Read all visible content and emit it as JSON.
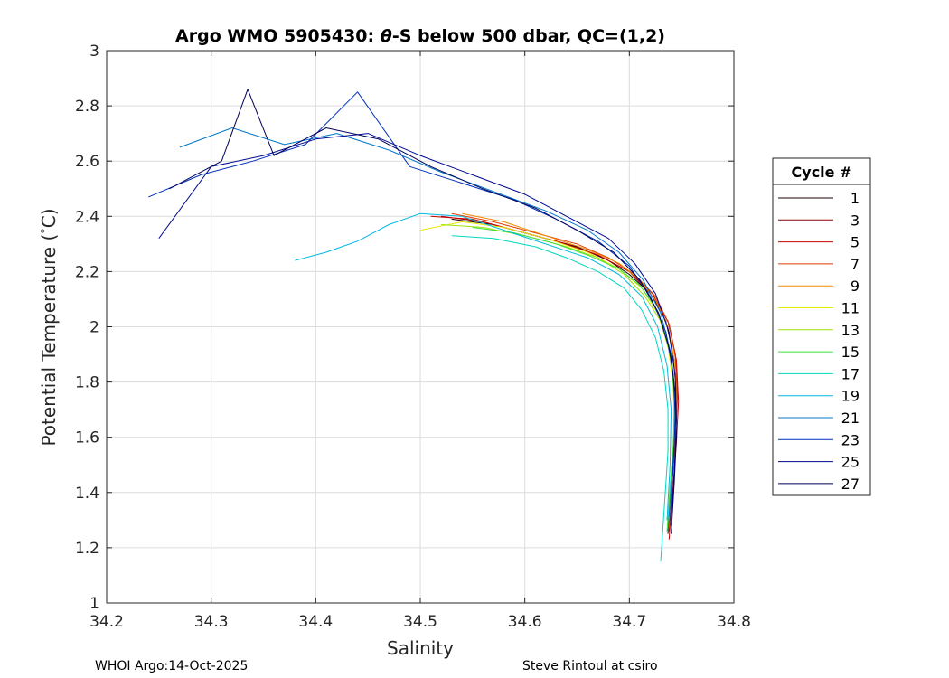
{
  "chart_data": {
    "type": "line",
    "title_prefix": "Argo WMO 5905430: ",
    "title_theta": "θ",
    "title_suffix": "-S below 500 dbar,  QC=(1,2)",
    "xlabel": "Salinity",
    "ylabel_main": "Potential Temperature (",
    "ylabel_deg": "°",
    "ylabel_unit": "C)",
    "xlim": [
      34.2,
      34.8
    ],
    "ylim": [
      1,
      3
    ],
    "xticks": [
      "34.2",
      "34.3",
      "34.4",
      "34.5",
      "34.6",
      "34.7",
      "34.8"
    ],
    "yticks": [
      "1",
      "1.2",
      "1.4",
      "1.6",
      "1.8",
      "2",
      "2.2",
      "2.4",
      "2.6",
      "2.8",
      "3"
    ],
    "grid": true,
    "legend_title": "Cycle #",
    "legend_position": "right-outside",
    "legend": [
      {
        "label": "1",
        "color": "#1a0000"
      },
      {
        "label": "3",
        "color": "#8b0000"
      },
      {
        "label": "5",
        "color": "#cc0000"
      },
      {
        "label": "7",
        "color": "#e03c00"
      },
      {
        "label": "9",
        "color": "#f08a00"
      },
      {
        "label": "11",
        "color": "#e8e800"
      },
      {
        "label": "13",
        "color": "#9ae600"
      },
      {
        "label": "15",
        "color": "#3ee03e"
      },
      {
        "label": "17",
        "color": "#00d8c0"
      },
      {
        "label": "19",
        "color": "#00b8e0"
      },
      {
        "label": "21",
        "color": "#0078c8"
      },
      {
        "label": "23",
        "color": "#0030b8"
      },
      {
        "label": "25",
        "color": "#000a90"
      },
      {
        "label": "27",
        "color": "#00005a"
      }
    ],
    "series": [
      {
        "name": "1",
        "color": "#1a0000",
        "x": [
          34.53,
          34.57,
          34.61,
          34.65,
          34.68,
          34.7,
          34.72,
          34.735,
          34.742,
          34.745,
          34.743,
          34.74,
          34.737
        ],
        "y": [
          2.39,
          2.37,
          2.33,
          2.29,
          2.24,
          2.19,
          2.12,
          2.02,
          1.9,
          1.75,
          1.6,
          1.45,
          1.25
        ]
      },
      {
        "name": "3",
        "color": "#8b0000",
        "x": [
          34.52,
          34.56,
          34.6,
          34.64,
          34.67,
          34.7,
          34.72,
          34.737,
          34.744,
          34.746,
          34.744,
          34.741,
          34.738
        ],
        "y": [
          2.4,
          2.38,
          2.34,
          2.3,
          2.26,
          2.2,
          2.12,
          2.02,
          1.9,
          1.75,
          1.6,
          1.45,
          1.26
        ]
      },
      {
        "name": "5",
        "color": "#cc0000",
        "x": [
          34.51,
          34.55,
          34.59,
          34.63,
          34.67,
          34.7,
          34.722,
          34.738,
          34.745,
          34.747,
          34.745,
          34.742,
          34.738
        ],
        "y": [
          2.4,
          2.39,
          2.35,
          2.31,
          2.26,
          2.2,
          2.12,
          2.01,
          1.88,
          1.73,
          1.58,
          1.43,
          1.23
        ]
      },
      {
        "name": "7",
        "color": "#e03c00",
        "x": [
          34.53,
          34.57,
          34.61,
          34.65,
          34.68,
          34.705,
          34.725,
          34.738,
          34.744,
          34.746,
          34.744,
          34.741,
          34.738
        ],
        "y": [
          2.41,
          2.38,
          2.34,
          2.3,
          2.25,
          2.19,
          2.11,
          2.01,
          1.89,
          1.74,
          1.59,
          1.44,
          1.27
        ]
      },
      {
        "name": "9",
        "color": "#f08a00",
        "x": [
          34.54,
          34.58,
          34.62,
          34.66,
          34.69,
          34.71,
          34.726,
          34.737,
          34.743,
          34.745,
          34.743,
          34.74,
          34.737
        ],
        "y": [
          2.41,
          2.38,
          2.33,
          2.28,
          2.23,
          2.17,
          2.09,
          2.0,
          1.88,
          1.74,
          1.59,
          1.44,
          1.28
        ]
      },
      {
        "name": "11",
        "color": "#e8e800",
        "x": [
          34.5,
          34.54,
          34.58,
          34.62,
          34.66,
          34.69,
          34.712,
          34.727,
          34.737,
          34.742,
          34.743,
          34.741,
          34.738
        ],
        "y": [
          2.35,
          2.38,
          2.36,
          2.32,
          2.27,
          2.21,
          2.14,
          2.05,
          1.93,
          1.79,
          1.64,
          1.48,
          1.3
        ]
      },
      {
        "name": "13",
        "color": "#9ae600",
        "x": [
          34.52,
          34.56,
          34.6,
          34.64,
          34.67,
          34.695,
          34.715,
          34.73,
          34.739,
          34.743,
          34.743,
          34.741,
          34.737
        ],
        "y": [
          2.37,
          2.36,
          2.33,
          2.29,
          2.25,
          2.19,
          2.11,
          2.02,
          1.9,
          1.76,
          1.61,
          1.45,
          1.28
        ]
      },
      {
        "name": "15",
        "color": "#3ee03e",
        "x": [
          34.55,
          34.59,
          34.63,
          34.66,
          34.69,
          34.71,
          34.725,
          34.735,
          34.741,
          34.743,
          34.742,
          34.739,
          34.736
        ],
        "y": [
          2.36,
          2.34,
          2.3,
          2.26,
          2.21,
          2.15,
          2.07,
          1.98,
          1.86,
          1.72,
          1.57,
          1.42,
          1.26
        ]
      },
      {
        "name": "17",
        "color": "#00d8c0",
        "x": [
          34.53,
          34.57,
          34.61,
          34.64,
          34.67,
          34.695,
          34.712,
          34.725,
          34.733,
          34.737,
          34.737,
          34.734,
          34.73
        ],
        "y": [
          2.33,
          2.32,
          2.29,
          2.25,
          2.2,
          2.14,
          2.06,
          1.96,
          1.84,
          1.7,
          1.55,
          1.38,
          1.15
        ]
      },
      {
        "name": "19",
        "color": "#00b8e0",
        "x": [
          34.38,
          34.41,
          34.44,
          34.47,
          34.5,
          34.54,
          34.58,
          34.62,
          34.66,
          34.69,
          34.712,
          34.727,
          34.736,
          34.74,
          34.739,
          34.736
        ],
        "y": [
          2.24,
          2.27,
          2.31,
          2.37,
          2.41,
          2.4,
          2.35,
          2.3,
          2.25,
          2.19,
          2.11,
          2.0,
          1.86,
          1.7,
          1.5,
          1.3
        ]
      },
      {
        "name": "21",
        "color": "#0078c8",
        "x": [
          34.27,
          34.32,
          34.37,
          34.42,
          34.47,
          34.52,
          34.57,
          34.62,
          34.66,
          34.69,
          34.713,
          34.73,
          34.74,
          34.744,
          34.743,
          34.74,
          34.737
        ],
        "y": [
          2.65,
          2.72,
          2.66,
          2.7,
          2.64,
          2.56,
          2.49,
          2.42,
          2.35,
          2.27,
          2.17,
          2.05,
          1.9,
          1.74,
          1.58,
          1.42,
          1.26
        ]
      },
      {
        "name": "23",
        "color": "#0030b8",
        "x": [
          34.24,
          34.29,
          34.34,
          34.39,
          34.44,
          34.49,
          34.54,
          34.59,
          34.63,
          34.67,
          34.7,
          34.72,
          34.735,
          34.742,
          34.744,
          34.742,
          34.739
        ],
        "y": [
          2.47,
          2.55,
          2.6,
          2.66,
          2.85,
          2.58,
          2.52,
          2.46,
          2.39,
          2.31,
          2.22,
          2.11,
          1.98,
          1.83,
          1.67,
          1.5,
          1.3
        ]
      },
      {
        "name": "25",
        "color": "#000a90",
        "x": [
          34.25,
          34.3,
          34.35,
          34.4,
          34.45,
          34.5,
          34.55,
          34.6,
          34.64,
          34.68,
          34.705,
          34.725,
          34.738,
          34.744,
          34.745,
          34.743,
          34.74
        ],
        "y": [
          2.32,
          2.58,
          2.62,
          2.68,
          2.7,
          2.62,
          2.55,
          2.48,
          2.4,
          2.32,
          2.23,
          2.12,
          1.98,
          1.82,
          1.66,
          1.48,
          1.28
        ]
      },
      {
        "name": "27",
        "color": "#00005a",
        "x": [
          34.26,
          34.31,
          34.335,
          34.36,
          34.41,
          34.46,
          34.51,
          34.56,
          34.61,
          34.65,
          34.685,
          34.71,
          34.728,
          34.739,
          34.744,
          34.745,
          34.743,
          34.74
        ],
        "y": [
          2.5,
          2.6,
          2.86,
          2.62,
          2.72,
          2.68,
          2.58,
          2.5,
          2.43,
          2.35,
          2.27,
          2.17,
          2.05,
          1.91,
          1.76,
          1.6,
          1.44,
          1.25
        ]
      }
    ]
  },
  "footer": {
    "left": "WHOI Argo:14-Oct-2025",
    "right": "Steve Rintoul at csiro"
  }
}
